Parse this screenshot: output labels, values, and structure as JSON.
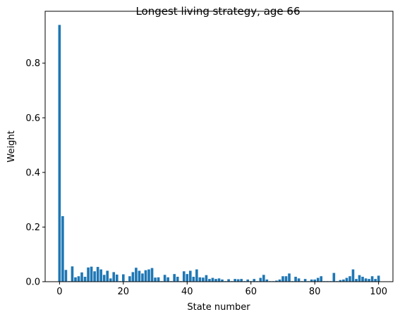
{
  "chart_data": {
    "type": "bar",
    "title": "Longest living strategy, age 66",
    "xlabel": "State number",
    "ylabel": "Weight",
    "xlim": [
      -4.5,
      104.5
    ],
    "ylim": [
      0,
      0.99
    ],
    "xticks": [
      0,
      20,
      40,
      60,
      80,
      100
    ],
    "yticks": [
      0.0,
      0.2,
      0.4,
      0.6,
      0.8
    ],
    "ytick_labels": [
      "0.0",
      "0.2",
      "0.4",
      "0.6",
      "0.8"
    ],
    "bar_color": "#1f77b4",
    "grid": false,
    "x": [
      0,
      1,
      2,
      3,
      4,
      5,
      6,
      7,
      8,
      9,
      10,
      11,
      12,
      13,
      14,
      15,
      16,
      17,
      18,
      19,
      20,
      21,
      22,
      23,
      24,
      25,
      26,
      27,
      28,
      29,
      30,
      31,
      32,
      33,
      34,
      35,
      36,
      37,
      38,
      39,
      40,
      41,
      42,
      43,
      44,
      45,
      46,
      47,
      48,
      49,
      50,
      51,
      52,
      53,
      54,
      55,
      56,
      57,
      58,
      59,
      60,
      61,
      62,
      63,
      64,
      65,
      66,
      67,
      68,
      69,
      70,
      71,
      72,
      73,
      74,
      75,
      76,
      77,
      78,
      79,
      80,
      81,
      82,
      83,
      84,
      85,
      86,
      87,
      88,
      89,
      90,
      91,
      92,
      93,
      94,
      95,
      96,
      97,
      98,
      99,
      100
    ],
    "values": [
      0.94,
      0.24,
      0.043,
      0.002,
      0.056,
      0.016,
      0.02,
      0.034,
      0.018,
      0.052,
      0.055,
      0.038,
      0.054,
      0.045,
      0.025,
      0.04,
      0.012,
      0.035,
      0.026,
      0.002,
      0.027,
      0.002,
      0.02,
      0.035,
      0.051,
      0.04,
      0.03,
      0.042,
      0.045,
      0.05,
      0.015,
      0.016,
      0.002,
      0.025,
      0.016,
      0.002,
      0.028,
      0.018,
      0.002,
      0.038,
      0.028,
      0.04,
      0.018,
      0.045,
      0.016,
      0.015,
      0.024,
      0.01,
      0.014,
      0.01,
      0.012,
      0.008,
      0.002,
      0.009,
      0.002,
      0.01,
      0.009,
      0.01,
      0.002,
      0.008,
      0.002,
      0.01,
      0.002,
      0.014,
      0.025,
      0.008,
      0.002,
      0.002,
      0.004,
      0.008,
      0.02,
      0.02,
      0.03,
      0.002,
      0.018,
      0.012,
      0.002,
      0.01,
      0.002,
      0.008,
      0.008,
      0.014,
      0.02,
      0.002,
      0.002,
      0.002,
      0.032,
      0.002,
      0.006,
      0.008,
      0.014,
      0.02,
      0.045,
      0.01,
      0.024,
      0.018,
      0.012,
      0.01,
      0.02,
      0.01,
      0.022
    ]
  }
}
